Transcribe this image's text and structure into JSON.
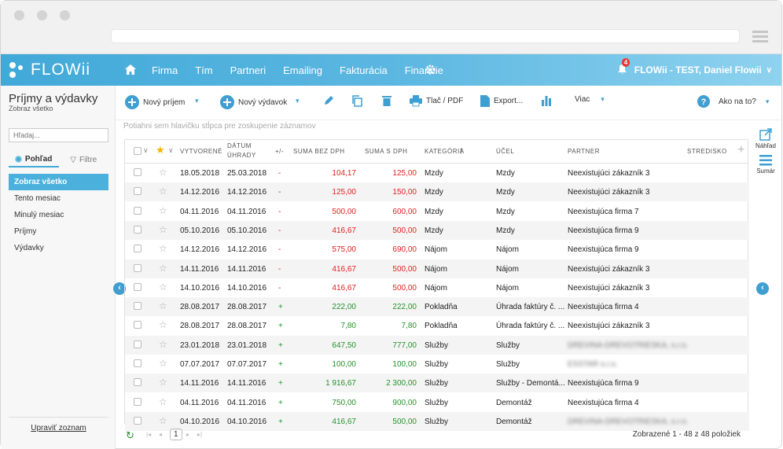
{
  "brand": {
    "name": "FLOWii"
  },
  "nav": {
    "items": [
      "Firma",
      "Tím",
      "Partneri",
      "Emailing",
      "Fakturácia",
      "Financie"
    ]
  },
  "user": {
    "name": "FLOWii - TEST, Daniel Flowii",
    "notifications": "4"
  },
  "sidebar": {
    "title": "Príjmy a výdavky",
    "subtitle": "Zobraz všetko",
    "search_placeholder": "Hľadaj...",
    "tabs": [
      {
        "label": "Pohľad"
      },
      {
        "label": "Filtre"
      }
    ],
    "items": [
      {
        "label": "Zobraz všetko"
      },
      {
        "label": "Tento mesiac"
      },
      {
        "label": "Minulý mesiac"
      },
      {
        "label": "Príjmy"
      },
      {
        "label": "Výdavky"
      }
    ],
    "footer_link": "Upraviť zoznam"
  },
  "toolbar": {
    "new_income": "Nový príjem",
    "new_expense": "Nový výdavok",
    "print": "Tlač / PDF",
    "export": "Export...",
    "more": "Viac",
    "help": "Ako na to?"
  },
  "grid": {
    "group_hint": "Potiahni sem hlavičku stĺpca pre zoskupenie záznamov",
    "headers": {
      "created": "VYTVORENÉ",
      "paid_line1": "DÁTUM",
      "paid_line2": "ÚHRADY",
      "sign": "+/-",
      "net": "SUMA BEZ DPH",
      "gross": "SUMA S DPH",
      "category": "KATEGÓRIA",
      "purpose": "ÚČEL",
      "partner": "PARTNER",
      "center": "STREDISKO"
    },
    "rows": [
      {
        "created": "18.05.2018",
        "paid": "25.03.2018",
        "sign": "-",
        "net": "104,17",
        "gross": "125,00",
        "category": "Mzdy",
        "purpose": "Mzdy",
        "partner": "Neexistujúci zákazník 3",
        "blur": false
      },
      {
        "created": "14.12.2016",
        "paid": "14.12.2016",
        "sign": "-",
        "net": "125,00",
        "gross": "150,00",
        "category": "Mzdy",
        "purpose": "Mzdy",
        "partner": "Neexistujúci zákazník 3",
        "blur": false
      },
      {
        "created": "04.11.2016",
        "paid": "04.11.2016",
        "sign": "-",
        "net": "500,00",
        "gross": "600,00",
        "category": "Mzdy",
        "purpose": "Mzdy",
        "partner": "Neexistujúca firma 7",
        "blur": false
      },
      {
        "created": "05.10.2016",
        "paid": "05.10.2016",
        "sign": "-",
        "net": "416,67",
        "gross": "500,00",
        "category": "Mzdy",
        "purpose": "Mzdy",
        "partner": "Neexistujúca firma 9",
        "blur": false
      },
      {
        "created": "14.12.2016",
        "paid": "14.12.2016",
        "sign": "-",
        "net": "575,00",
        "gross": "690,00",
        "category": "Nájom",
        "purpose": "Nájom",
        "partner": "Neexistujúca firma 9",
        "blur": false
      },
      {
        "created": "14.11.2016",
        "paid": "14.11.2016",
        "sign": "-",
        "net": "416,67",
        "gross": "500,00",
        "category": "Nájom",
        "purpose": "Nájom",
        "partner": "Neexistujúci zákazník 3",
        "blur": false
      },
      {
        "created": "14.10.2016",
        "paid": "14.10.2016",
        "sign": "-",
        "net": "416,67",
        "gross": "500,00",
        "category": "Nájom",
        "purpose": "Nájom",
        "partner": "Neexistujúci zákazník 3",
        "blur": false
      },
      {
        "created": "28.08.2017",
        "paid": "28.08.2017",
        "sign": "+",
        "net": "222,00",
        "gross": "222,00",
        "category": "Pokladňa",
        "purpose": "Úhrada faktúry č. ...",
        "partner": "Neexistujúca firma 4",
        "blur": false
      },
      {
        "created": "28.08.2017",
        "paid": "28.08.2017",
        "sign": "+",
        "net": "7,80",
        "gross": "7,80",
        "category": "Pokladňa",
        "purpose": "Úhrada faktúry č. ...",
        "partner": "Neexistujúci zákazník 3",
        "blur": false
      },
      {
        "created": "23.01.2018",
        "paid": "23.01.2018",
        "sign": "+",
        "net": "647,50",
        "gross": "777,00",
        "category": "Služby",
        "purpose": "Služby",
        "partner": "DREVINA-DREVOTRIESKA, s.r.o.",
        "blur": true
      },
      {
        "created": "07.07.2017",
        "paid": "07.07.2017",
        "sign": "+",
        "net": "100,00",
        "gross": "100,00",
        "category": "Služby",
        "purpose": "Služby",
        "partner": "ESSTAR s.r.o.",
        "blur": true
      },
      {
        "created": "14.11.2016",
        "paid": "14.11.2016",
        "sign": "+",
        "net": "1 916,67",
        "gross": "2 300,00",
        "category": "Služby",
        "purpose": "Služby - Demontá...",
        "partner": "Neexistujúca firma 9",
        "blur": false
      },
      {
        "created": "04.11.2016",
        "paid": "04.11.2016",
        "sign": "+",
        "net": "750,00",
        "gross": "900,00",
        "category": "Služby",
        "purpose": "Demontáž",
        "partner": "Neexistujúca firma 4",
        "blur": false
      },
      {
        "created": "04.10.2016",
        "paid": "04.10.2016",
        "sign": "+",
        "net": "416,67",
        "gross": "500,00",
        "category": "Služby",
        "purpose": "Demontáž",
        "partner": "DREVINA-DREVOTRIESKA, s.r.o.",
        "blur": true
      }
    ]
  },
  "pager": {
    "page": "1",
    "summary": "Zobrazené 1 - 48 z 48 položiek"
  },
  "right_panel": {
    "preview": "Náhľad",
    "summary": "Sumár"
  },
  "colors": {
    "accent": "#42a9d8",
    "negative": "#e02020",
    "positive": "#22932a"
  }
}
